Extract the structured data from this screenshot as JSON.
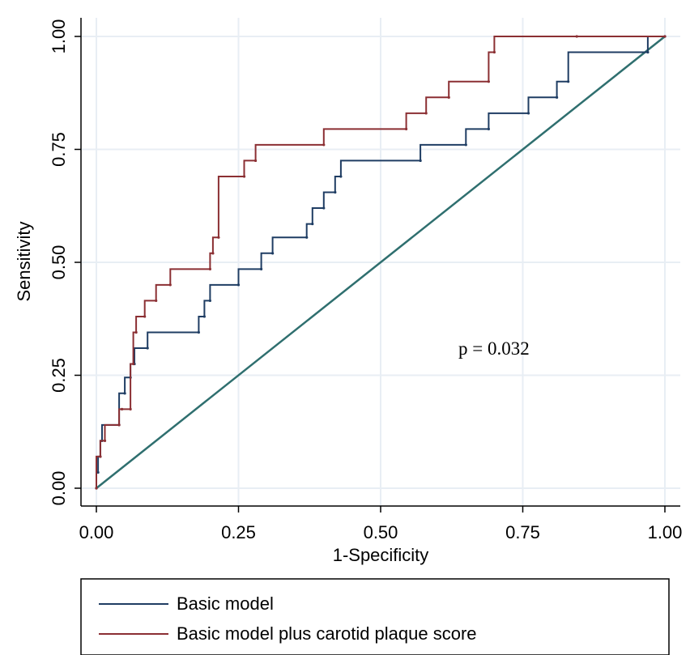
{
  "chart_data": {
    "type": "line",
    "xlabel": "1-Specificity",
    "ylabel": "Sensitivity",
    "xlim": [
      0,
      1
    ],
    "ylim": [
      0,
      1
    ],
    "xticks": [
      "0.00",
      "0.25",
      "0.50",
      "0.75",
      "1.00"
    ],
    "yticks": [
      "0.00",
      "0.25",
      "0.50",
      "0.75",
      "1.00"
    ],
    "grid": true,
    "annotation": "p = 0.032",
    "legend_position": "bottom",
    "reference_line": {
      "color": "#2f6f6f",
      "x": [
        0,
        1
      ],
      "y": [
        0,
        1
      ]
    },
    "series": [
      {
        "name": "Basic model",
        "color": "#1f3d63",
        "x": [
          0,
          0,
          0.003,
          0.003,
          0.007,
          0.007,
          0.01,
          0.01,
          0.04,
          0.04,
          0.05,
          0.05,
          0.06,
          0.06,
          0.067,
          0.067,
          0.09,
          0.09,
          0.18,
          0.18,
          0.19,
          0.19,
          0.2,
          0.2,
          0.25,
          0.25,
          0.29,
          0.29,
          0.31,
          0.31,
          0.37,
          0.37,
          0.38,
          0.38,
          0.4,
          0.4,
          0.42,
          0.42,
          0.43,
          0.43,
          0.57,
          0.57,
          0.65,
          0.65,
          0.69,
          0.69,
          0.76,
          0.76,
          0.81,
          0.81,
          0.83,
          0.83,
          0.97,
          0.97,
          1.0
        ],
        "y": [
          0,
          0.035,
          0.035,
          0.07,
          0.07,
          0.105,
          0.105,
          0.14,
          0.14,
          0.21,
          0.21,
          0.245,
          0.245,
          0.275,
          0.275,
          0.31,
          0.31,
          0.345,
          0.345,
          0.38,
          0.38,
          0.415,
          0.415,
          0.45,
          0.45,
          0.485,
          0.485,
          0.52,
          0.52,
          0.555,
          0.555,
          0.585,
          0.585,
          0.62,
          0.62,
          0.655,
          0.655,
          0.69,
          0.69,
          0.725,
          0.725,
          0.76,
          0.76,
          0.795,
          0.795,
          0.83,
          0.83,
          0.865,
          0.865,
          0.9,
          0.9,
          0.965,
          0.965,
          1.0,
          1.0
        ]
      },
      {
        "name": "Basic model plus carotid plaque score",
        "color": "#8b2f33",
        "x": [
          0,
          0,
          0.007,
          0.007,
          0.015,
          0.015,
          0.04,
          0.04,
          0.045,
          0.045,
          0.06,
          0.06,
          0.065,
          0.065,
          0.07,
          0.07,
          0.085,
          0.085,
          0.105,
          0.105,
          0.13,
          0.13,
          0.2,
          0.2,
          0.205,
          0.205,
          0.215,
          0.215,
          0.26,
          0.26,
          0.28,
          0.28,
          0.4,
          0.4,
          0.545,
          0.545,
          0.58,
          0.58,
          0.62,
          0.62,
          0.69,
          0.69,
          0.7,
          0.7,
          0.845,
          0.845,
          1.0
        ],
        "y": [
          0,
          0.07,
          0.07,
          0.105,
          0.105,
          0.14,
          0.14,
          0.175,
          0.175,
          0.175,
          0.175,
          0.275,
          0.275,
          0.345,
          0.345,
          0.38,
          0.38,
          0.415,
          0.415,
          0.45,
          0.45,
          0.485,
          0.485,
          0.52,
          0.52,
          0.555,
          0.555,
          0.69,
          0.69,
          0.725,
          0.725,
          0.76,
          0.76,
          0.795,
          0.795,
          0.83,
          0.83,
          0.865,
          0.865,
          0.9,
          0.9,
          0.965,
          0.965,
          1.0,
          1.0,
          1.0,
          1.0
        ]
      }
    ]
  }
}
